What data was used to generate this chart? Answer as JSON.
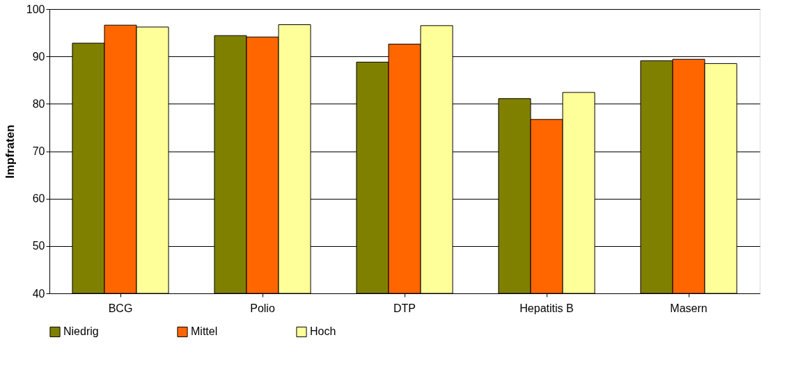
{
  "chart_data": {
    "type": "bar",
    "ylabel": "Impfraten",
    "categories": [
      "BCG",
      "Polio",
      "DTP",
      "Hepatitis B",
      "Masern"
    ],
    "series": [
      {
        "name": "Niedrig",
        "color": "#808000",
        "values": [
          92.8,
          94.4,
          88.8,
          81.1,
          89.1
        ]
      },
      {
        "name": "Mittel",
        "color": "#ff6600",
        "values": [
          96.6,
          94.1,
          92.6,
          76.7,
          89.4
        ]
      },
      {
        "name": "Hoch",
        "color": "#ffff99",
        "values": [
          96.2,
          96.7,
          96.5,
          82.4,
          88.5
        ]
      }
    ],
    "ylim": [
      40,
      100
    ],
    "yticks": [
      40,
      50,
      60,
      70,
      80,
      90,
      100
    ],
    "grid": "y",
    "legend": "bottom"
  }
}
